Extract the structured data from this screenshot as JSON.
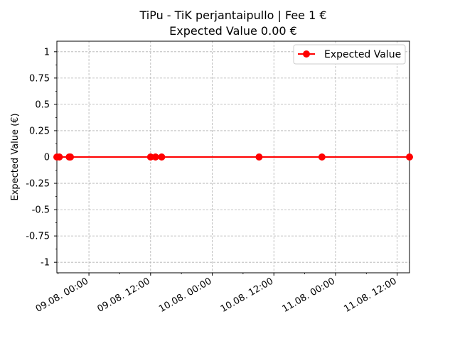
{
  "chart_data": {
    "type": "line",
    "title": "TiPu - TiK perjantaipullo | Fee 1 €",
    "subtitle": "Expected Value 0.00 €",
    "xlabel": "",
    "ylabel": "Expected Value (€)",
    "ylim": [
      -1.1,
      1.1
    ],
    "xlim": [
      -0.26,
      2.6
    ],
    "grid": true,
    "legend": "top-right",
    "yticks": [
      1,
      0.75,
      0.5,
      0.25,
      0,
      -0.25,
      -0.5,
      -0.75,
      -1
    ],
    "ytick_labels": [
      "1",
      "0.75",
      "0.5",
      "0.25",
      "0",
      "-0.25",
      "-0.5",
      "-0.75",
      "-1"
    ],
    "xticks": [
      0,
      0.5,
      1,
      1.5,
      2,
      2.5
    ],
    "xtick_labels": [
      "09.08. 00:00",
      "09.08. 12:00",
      "10.08. 00:00",
      "10.08. 12:00",
      "11.08. 00:00",
      "11.08. 12:00"
    ],
    "series": [
      {
        "name": "Expected Value",
        "color": "#ff0000",
        "x": [
          -0.26,
          -0.24,
          -0.16,
          -0.15,
          0.5,
          0.54,
          0.59,
          1.38,
          1.89,
          2.6
        ],
        "y": [
          0,
          0,
          0,
          0,
          0,
          0,
          0,
          0,
          0,
          0
        ]
      }
    ]
  }
}
